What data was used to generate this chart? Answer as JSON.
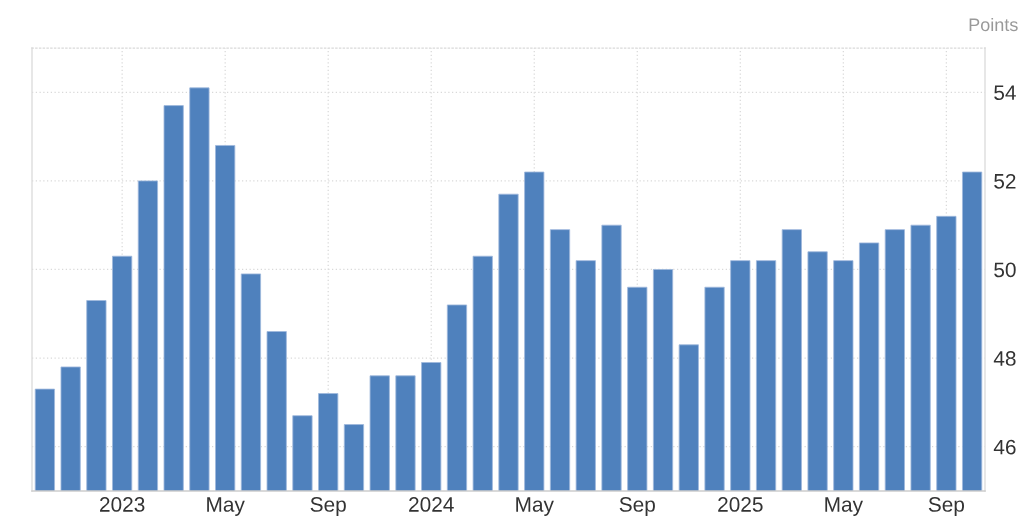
{
  "chart_data": {
    "type": "bar",
    "ylabel": "Points",
    "categories": [
      null,
      null,
      null,
      "2023",
      null,
      null,
      null,
      "May",
      null,
      null,
      null,
      "Sep",
      null,
      null,
      null,
      "2024",
      null,
      null,
      null,
      "May",
      null,
      null,
      null,
      "Sep",
      null,
      null,
      null,
      "2025",
      null,
      null,
      null,
      "May",
      null,
      null,
      null,
      "Sep",
      null
    ],
    "values": [
      47.3,
      47.8,
      49.3,
      50.3,
      52.0,
      53.7,
      54.1,
      52.8,
      49.9,
      48.6,
      46.7,
      47.2,
      46.5,
      47.6,
      47.6,
      47.9,
      49.2,
      50.3,
      51.7,
      52.2,
      50.9,
      50.2,
      51.0,
      49.6,
      50.0,
      48.3,
      49.6,
      50.2,
      50.2,
      50.9,
      50.4,
      50.2,
      50.6,
      50.9,
      51.0,
      51.2,
      52.2
    ],
    "color": "#4f81bd",
    "ylim": [
      45,
      55
    ],
    "yticks": [
      46,
      48,
      50,
      52,
      54
    ],
    "grid": true
  }
}
